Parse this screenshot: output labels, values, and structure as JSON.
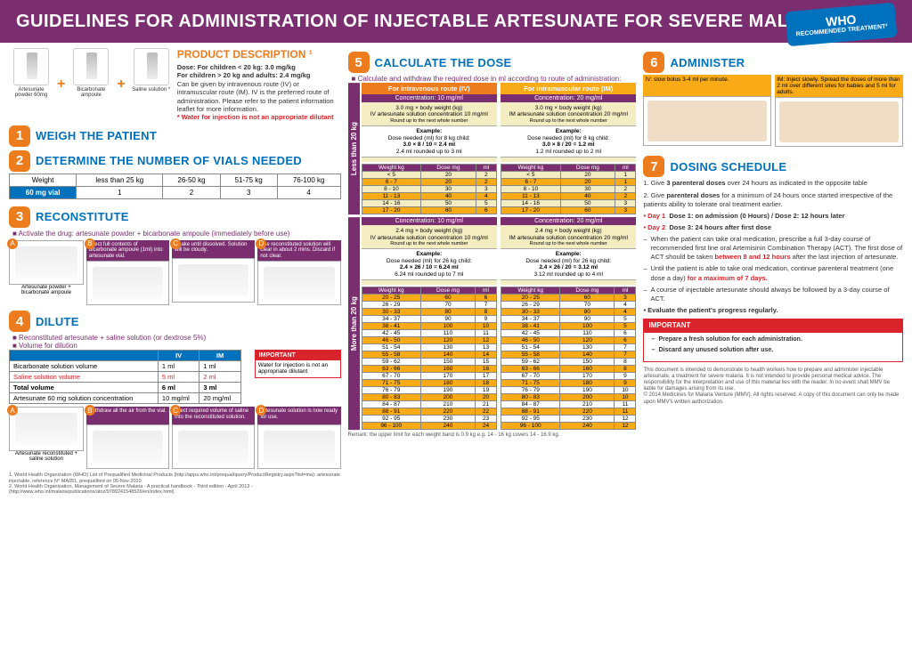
{
  "header": {
    "title": "GUIDELINES FOR ADMINISTRATION OF INJECTABLE ARTESUNATE FOR SEVERE MALARIA",
    "who": "WHO",
    "who_sub": "RECOMMENDED TREATMENT²"
  },
  "pd": {
    "title": "PRODUCT DESCRIPTION ¹",
    "dose1": "Dose: For children < 20 kg: 3.0 mg/kg",
    "dose2": "For children > 20 kg and adults: 2.4 mg/kg",
    "text": "Can be given by intravenous route (IV) or intramuscular route (IM). IV is the preferred route of administration. Please refer to the patient information leaflet for more information.",
    "warn": "* Water for injection is not an appropriate dilutant",
    "vial1": "Artesunate powder 60mg",
    "vial2": "Bicarbonate ampoule",
    "vial3": "Saline solution *"
  },
  "s1": {
    "title": "WEIGH THE PATIENT"
  },
  "s2": {
    "title": "DETERMINE THE NUMBER OF VIALS NEEDED",
    "th": [
      "Weight",
      "less than 25 kg",
      "26-50 kg",
      "51-75 kg",
      "76-100 kg"
    ],
    "row_label": "60 mg vial",
    "row": [
      "1",
      "2",
      "3",
      "4"
    ]
  },
  "s3": {
    "title": "RECONSTITUTE",
    "sub": "■ Activate the drug: artesunate powder + bicarbonate ampoule (immediately before use)",
    "steps": [
      "Inject full contents of bicarbonate ampoule (1ml) into artesunate vial.",
      "Shake until dissolved. Solution will be cloudy.",
      "The reconstituted solution will clear in about 2 mins. Discard if not clear."
    ],
    "prod_l": "Artesunate powder",
    "prod_r": "bicarbonate ampoule"
  },
  "s4": {
    "title": "DILUTE",
    "sub1": "■ Reconstituted artesunate + saline solution (or dextrose 5%)",
    "sub2": "■ Volume for dilution",
    "th": [
      "",
      "IV",
      "IM"
    ],
    "rows": [
      [
        "Bicarbonate solution volume",
        "1 ml",
        "1 ml"
      ],
      [
        "Saline solution volume",
        "5 ml",
        "2 ml"
      ],
      [
        "Total volume",
        "6 ml",
        "3 ml"
      ],
      [
        "Artesunate 60 mg solution concentration",
        "10 mg/ml",
        "20 mg/ml"
      ]
    ],
    "imp_h": "IMPORTANT",
    "imp_t": "Water for injection is not an appropriate dilutant",
    "steps": [
      "Withdraw all the air from the vial.",
      "Inject required volume of saline into the reconstituted solution.",
      "Artesunate solution is now ready for use."
    ],
    "prod_l": "Artesunate reconstituted",
    "prod_r": "saline solution"
  },
  "s5": {
    "title": "CALCULATE THE DOSE",
    "sub": "■ Calculate and withdraw the required dose in ml according to route of administration:",
    "iv_h": "For intravenous route (IV)",
    "im_h": "For intramuscular route (IM)",
    "conc10": "Concentration: 10 mg/ml",
    "conc20": "Concentration: 20 mg/ml",
    "less": {
      "label": "Less than 20 kg",
      "iv_f": "3.0 mg × body weight (kg)",
      "iv_s": "IV artesunate solution concentration 10 mg/ml",
      "round": "Round up to the next whole number",
      "ex": "Example:",
      "iv_ex": "Dose needed (ml) for 8 kg child:",
      "iv_calc": "3.0 × 8 / 10 = 2.4 ml",
      "iv_r": "2.4 ml rounded up to 3 ml",
      "im_f": "3.0 mg × body weight (kg)",
      "im_s": "IM artesunate solution concentration 20 mg/ml",
      "im_calc": "3.0 × 8 / 20 = 1.2 ml",
      "im_r": "1.2 ml rounded up to 2 ml",
      "th": [
        "Weight kg",
        "Dose mg",
        "ml"
      ],
      "iv_rows": [
        [
          "< 5",
          "20",
          "2"
        ],
        [
          "6 - 7",
          "20",
          "2"
        ],
        [
          "8 - 10",
          "30",
          "3"
        ],
        [
          "11 - 13",
          "40",
          "4"
        ],
        [
          "14 - 16",
          "50",
          "5"
        ],
        [
          "17 - 20",
          "60",
          "6"
        ]
      ],
      "im_rows": [
        [
          "< 5",
          "20",
          "1"
        ],
        [
          "6 - 7",
          "20",
          "1"
        ],
        [
          "8 - 10",
          "30",
          "2"
        ],
        [
          "11 - 13",
          "40",
          "2"
        ],
        [
          "14 - 16",
          "50",
          "3"
        ],
        [
          "17 - 20",
          "60",
          "3"
        ]
      ],
      "hl": [
        1,
        3,
        5
      ]
    },
    "more": {
      "label": "More than 20 kg",
      "iv_f": "2.4 mg × body weight (kg)",
      "iv_s": "IV artesunate solution concentration 10 mg/ml",
      "im_s": "IM artesunate solution concentration 20 mg/ml",
      "iv_ex": "Dose needed (ml) for 26 kg child:",
      "iv_calc": "2.4 × 26 / 10 = 6.24 ml",
      "iv_r": "6.24 ml rounded up to 7 ml",
      "im_calc": "2.4 × 26 / 20 = 3.12 ml",
      "im_r": "3.12 ml rounded up to 4 ml",
      "iv_rows": [
        [
          "20 - 25",
          "60",
          "6"
        ],
        [
          "26 - 29",
          "70",
          "7"
        ],
        [
          "30 - 33",
          "80",
          "8"
        ],
        [
          "34 - 37",
          "90",
          "9"
        ],
        [
          "38 - 41",
          "100",
          "10"
        ],
        [
          "42 - 45",
          "110",
          "11"
        ],
        [
          "46 - 50",
          "120",
          "12"
        ],
        [
          "51 - 54",
          "130",
          "13"
        ],
        [
          "55 - 58",
          "140",
          "14"
        ],
        [
          "59 - 62",
          "150",
          "15"
        ],
        [
          "63 - 66",
          "160",
          "16"
        ],
        [
          "67 - 70",
          "170",
          "17"
        ],
        [
          "71 - 75",
          "180",
          "18"
        ],
        [
          "76 - 79",
          "190",
          "19"
        ],
        [
          "80 - 83",
          "200",
          "20"
        ],
        [
          "84 - 87",
          "210",
          "21"
        ],
        [
          "88 - 91",
          "220",
          "22"
        ],
        [
          "92 - 95",
          "230",
          "23"
        ],
        [
          "96 - 100",
          "240",
          "24"
        ]
      ],
      "im_rows": [
        [
          "20 - 25",
          "60",
          "3"
        ],
        [
          "26 - 29",
          "70",
          "4"
        ],
        [
          "30 - 33",
          "80",
          "4"
        ],
        [
          "34 - 37",
          "90",
          "5"
        ],
        [
          "38 - 41",
          "100",
          "5"
        ],
        [
          "42 - 45",
          "110",
          "6"
        ],
        [
          "46 - 50",
          "120",
          "6"
        ],
        [
          "51 - 54",
          "130",
          "7"
        ],
        [
          "55 - 58",
          "140",
          "7"
        ],
        [
          "59 - 62",
          "150",
          "8"
        ],
        [
          "63 - 66",
          "160",
          "8"
        ],
        [
          "67 - 70",
          "170",
          "9"
        ],
        [
          "71 - 75",
          "180",
          "9"
        ],
        [
          "76 - 79",
          "190",
          "10"
        ],
        [
          "80 - 83",
          "200",
          "10"
        ],
        [
          "84 - 87",
          "210",
          "11"
        ],
        [
          "88 - 91",
          "220",
          "11"
        ],
        [
          "92 - 95",
          "230",
          "12"
        ],
        [
          "96 - 100",
          "240",
          "12"
        ]
      ],
      "hl": [
        0,
        2,
        4,
        6,
        8,
        10,
        12,
        14,
        16,
        18
      ]
    },
    "remark": "Remark: the upper limit for each weight band is 0.9 kg e.g. 14 - 16 kg covers 14 - 16.9 kg."
  },
  "s6": {
    "title": "ADMINISTER",
    "iv_h": "IV: slow bolus 3-4 ml per minute.",
    "im_h": "IM: Inject slowly. Spread the doses of more than 2 ml over different sites for babies and 5 ml for adults."
  },
  "s7": {
    "title": "DOSING SCHEDULE",
    "p1a": "1. Give ",
    "p1b": "3 parenteral doses",
    "p1c": " over 24 hours as indicated in the opposite table",
    "p2a": "2. Give ",
    "p2b": "parenteral doses",
    "p2c": " for a minimum of 24 hours once started irrespective of the patients ability to tolerate oral treatment earlier.",
    "d1": "• Day 1",
    "d1t": "Dose 1: on admission (0 Hours) / Dose 2: 12 hours later",
    "d2": "• Day 2",
    "d2t": "Dose 3: 24 hours after first dose",
    "b1": "When the patient can take oral medication, prescribe a full 3-day course of recommended first line oral Artemisinin Combination Therapy (ACT). The first dose of ACT should be taken ",
    "b1r": "between 8 and 12 hours",
    "b1e": " after the last injection of artesunate.",
    "b2": "Until the patient is able to take oral medication, continue parenteral treatment (one dose a day) ",
    "b2r": "for a maximum of 7 days.",
    "b3": "A course of injectable artesunate should always be followed by a 3-day course of ACT.",
    "b4": "• Evaluate the patient's progress regularly.",
    "imp_h": "IMPORTANT",
    "imp1": "Prepare a fresh solution for each administration.",
    "imp2": "Discard any unused solution after use."
  },
  "fine": {
    "t1": "This document is intended to demonstrate to health workers how to prepare and administer injectable artesunate, a treatment for severe malaria. It is not intended to provide personal medical advice. The responsibility for the interpretation and use of this material lies with the reader. In no event shall MMV be liable for damages arising from its use.",
    "t2": "© 2014 Medicines for Malaria Venture (MMV). All rights reserved. A copy of this document can only be made upon MMV's written authorization."
  },
  "refs": {
    "r1": "1. World Health Organization (WHO) List of Prequalified Medicinal Products (http://apps.who.int/prequal/query/ProductRegistry.aspx?list=ma): artesunate injectable, reference N° MA051, prequalified on 05-Nov-2010",
    "r2": "2. World Health Organisation, Management of Severe Malaria - A practical handbook - Third edition - April 2013 - (http://www.who.int/malaria/publications/atoz/9789241548526/en/index.html)"
  }
}
